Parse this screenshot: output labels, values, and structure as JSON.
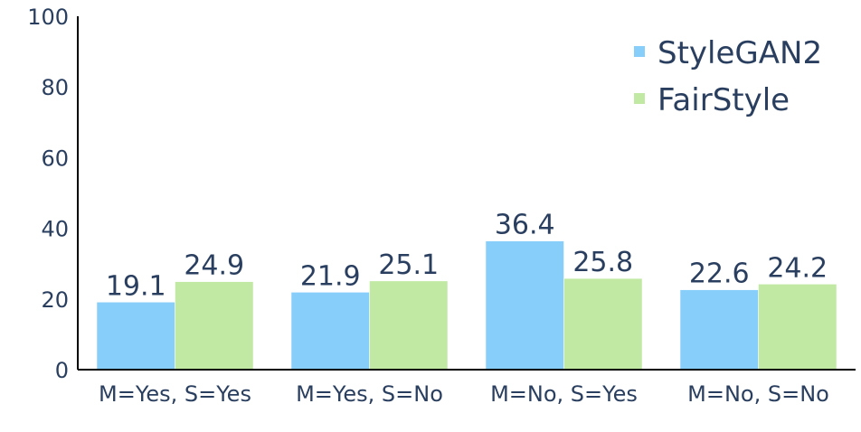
{
  "chart_data": {
    "type": "bar",
    "title": "",
    "xlabel": "",
    "ylabel": "",
    "categories": [
      "M=Yes, S=Yes",
      "M=Yes, S=No",
      "M=No, S=Yes",
      "M=No, S=No"
    ],
    "series": [
      {
        "name": "StyleGAN2",
        "values": [
          19.1,
          21.9,
          36.4,
          22.6
        ],
        "labels": [
          "19.1",
          "21.9",
          "36.4",
          "22.6"
        ],
        "color": "#87cefa"
      },
      {
        "name": "FairStyle",
        "values": [
          24.9,
          25.1,
          25.8,
          24.2
        ],
        "labels": [
          "24.9",
          "25.1",
          "25.8",
          "24.2"
        ],
        "color": "#c1e9a4"
      }
    ],
    "ylim": [
      0,
      100
    ],
    "yticks": [
      0,
      20,
      40,
      60,
      80,
      100
    ],
    "ytick_labels": [
      "0",
      "20",
      "40",
      "60",
      "80",
      "100"
    ],
    "grid": false,
    "legend_position": "top-right"
  }
}
